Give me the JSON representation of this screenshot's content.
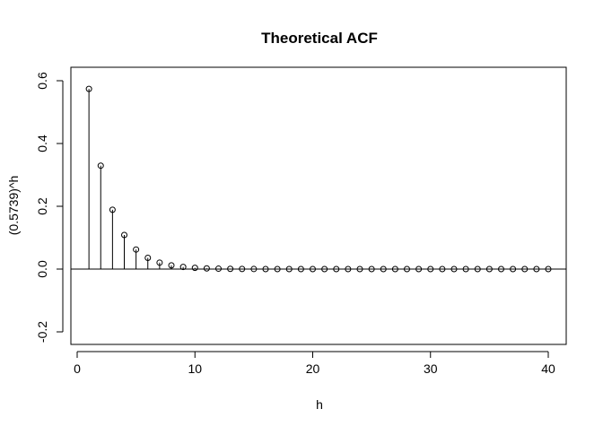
{
  "chart_data": {
    "type": "scatter",
    "style": "histogram-spikes-with-open-circles",
    "title": "Theoretical ACF",
    "xlabel": "h",
    "ylabel": "(0.5739)^h",
    "xlim": [
      0,
      40
    ],
    "ylim": [
      -0.2,
      0.6
    ],
    "xticks": [
      0,
      10,
      20,
      30,
      40
    ],
    "yticks": [
      -0.2,
      0.0,
      0.2,
      0.4,
      0.6
    ],
    "x_tick_labels": [
      "0",
      "10",
      "20",
      "30",
      "40"
    ],
    "y_tick_labels": [
      "-0.2",
      "0.0",
      "0.2",
      "0.4",
      "0.6"
    ],
    "reference_line_y": 0,
    "grid": false,
    "legend": "none",
    "x": [
      1,
      2,
      3,
      4,
      5,
      6,
      7,
      8,
      9,
      10,
      11,
      12,
      13,
      14,
      15,
      16,
      17,
      18,
      19,
      20,
      21,
      22,
      23,
      24,
      25,
      26,
      27,
      28,
      29,
      30,
      31,
      32,
      33,
      34,
      35,
      36,
      37,
      38,
      39,
      40
    ],
    "y": [
      0.5739,
      0.3294,
      0.189,
      0.1085,
      0.0623,
      0.0357,
      0.0205,
      0.0118,
      0.0068,
      0.0039,
      0.0022,
      0.0013,
      0.0007,
      0.0004,
      0.0002,
      0.0001,
      0.0001,
      0,
      0,
      0,
      0,
      0,
      0,
      0,
      0,
      0,
      0,
      0,
      0,
      0,
      0,
      0,
      0,
      0,
      0,
      0,
      0,
      0,
      0,
      0
    ]
  }
}
